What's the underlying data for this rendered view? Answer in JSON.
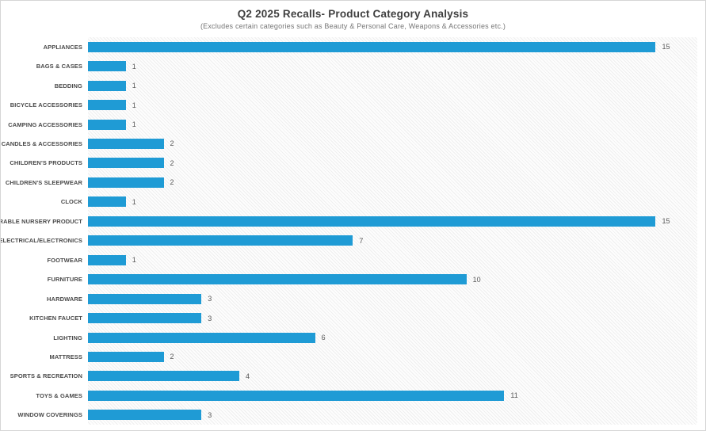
{
  "header": {
    "title": "Q2 2025 Recalls- Product Category Analysis",
    "subtitle": "(Excludes certain categories such as Beauty & Personal Care, Weapons & Accessories etc.)"
  },
  "colors": {
    "bar": "#1f9bd5",
    "plot_background": "#f7f7f7",
    "title_text": "#3f3f3f",
    "subtitle_text": "#767676",
    "category_label_text": "#4a4a4a",
    "value_label_text": "#595959",
    "border": "#d6d6d6"
  },
  "chart_data": {
    "type": "bar",
    "orientation": "horizontal",
    "title": "Q2 2025 Recalls- Product Category Analysis",
    "subtitle": "(Excludes certain categories such as Beauty & Personal Care, Weapons & Accessories etc.)",
    "categories": [
      "APPLIANCES",
      "BAGS & CASES",
      "BEDDING",
      "BICYCLE ACCESSORIES",
      "CAMPING ACCESSORIES",
      "CANDLES & ACCESSORIES",
      "CHILDREN'S PRODUCTS",
      "CHILDREN'S SLEEPWEAR",
      "CLOCK",
      "DURABLE NURSERY PRODUCT",
      "ELECTRICAL/ELECTRONICS",
      "FOOTWEAR",
      "FURNITURE",
      "HARDWARE",
      "KITCHEN FAUCET",
      "LIGHTING",
      "MATTRESS",
      "SPORTS & RECREATION",
      "TOYS & GAMES",
      "WINDOW COVERINGS"
    ],
    "values": [
      15,
      1,
      1,
      1,
      1,
      2,
      2,
      2,
      1,
      15,
      7,
      1,
      10,
      3,
      3,
      6,
      2,
      4,
      11,
      3
    ],
    "xlabel": "",
    "ylabel": "",
    "xlim": [
      0,
      16.1
    ],
    "grid": false,
    "legend": false,
    "value_labels": true
  }
}
